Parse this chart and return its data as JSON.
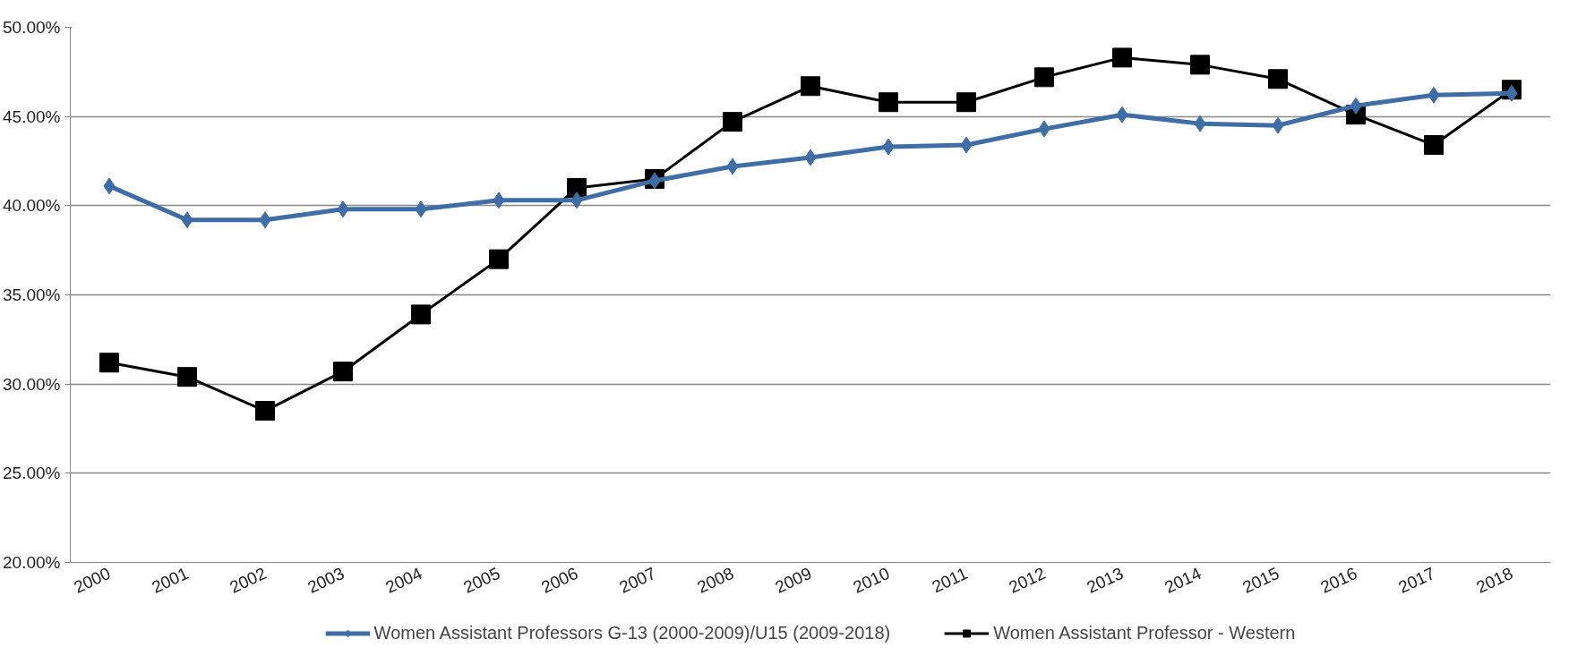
{
  "chart_data": {
    "type": "line",
    "categories": [
      "2000",
      "2001",
      "2002",
      "2003",
      "2004",
      "2005",
      "2006",
      "2007",
      "2008",
      "2009",
      "2010",
      "2011",
      "2012",
      "2013",
      "2014",
      "2015",
      "2016",
      "2017",
      "2018"
    ],
    "series": [
      {
        "name": "Women Assistant Professors G-13 (2000-2009)/U15 (2009-2018)",
        "color": "#3f6da5",
        "marker": "diamond",
        "values": [
          41.1,
          39.2,
          39.2,
          39.8,
          39.8,
          40.3,
          40.3,
          41.4,
          42.2,
          42.7,
          43.3,
          43.4,
          44.3,
          45.1,
          44.6,
          44.5,
          45.6,
          46.2,
          46.3
        ]
      },
      {
        "name": "Women Assistant Professor - Western",
        "color": "#000000",
        "marker": "square",
        "values": [
          31.2,
          30.4,
          28.5,
          30.7,
          33.9,
          37.0,
          41.0,
          41.5,
          44.7,
          46.7,
          45.8,
          45.8,
          47.2,
          48.3,
          47.9,
          47.1,
          45.1,
          43.4,
          46.5
        ]
      }
    ],
    "ylim": [
      20,
      50
    ],
    "yticks": [
      {
        "value": 20,
        "label": "20.00%"
      },
      {
        "value": 25,
        "label": "25.00%"
      },
      {
        "value": 30,
        "label": "30.00%"
      },
      {
        "value": 35,
        "label": "35.00%"
      },
      {
        "value": 40,
        "label": "40.00%"
      },
      {
        "value": 45,
        "label": "45.00%"
      },
      {
        "value": 50,
        "label": "50.00%"
      }
    ],
    "grid": "y",
    "legend": "bottom",
    "line_style": "solid"
  }
}
